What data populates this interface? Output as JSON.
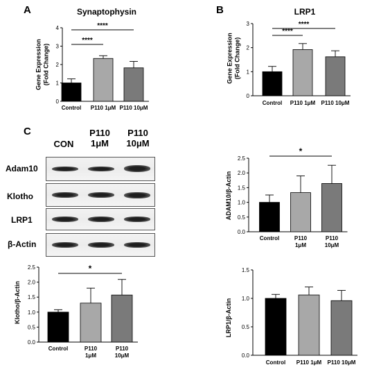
{
  "panels": {
    "a": "A",
    "b": "B",
    "c": "C"
  },
  "blot": {
    "lanes": [
      "CON",
      "P110 1μM",
      "P110 10μM"
    ],
    "rows": [
      {
        "label": "Adam10",
        "intensity": [
          0.75,
          0.8,
          1.0
        ]
      },
      {
        "label": "Klotho",
        "intensity": [
          0.85,
          0.9,
          0.95
        ]
      },
      {
        "label": "LRP1",
        "intensity": [
          0.95,
          0.95,
          0.95
        ]
      },
      {
        "label": "β-Actin",
        "intensity": [
          1.0,
          1.0,
          1.0
        ]
      }
    ]
  },
  "chart_data": [
    {
      "id": "synaptophysin",
      "type": "bar",
      "title": "Synaptophysin",
      "ylabel": [
        "Gene Expression",
        "(Fold Change)"
      ],
      "xlabel": "",
      "categories": [
        [
          "Control"
        ],
        [
          "P110 1μM"
        ],
        [
          "P110 10μM"
        ]
      ],
      "values": [
        1.0,
        2.33,
        1.82
      ],
      "errors": [
        0.22,
        0.15,
        0.35
      ],
      "colors": [
        "#000000",
        "#a8a8a8",
        "#7a7a7a"
      ],
      "ylim": [
        0,
        4
      ],
      "yticks": [
        0,
        1,
        2,
        3,
        4
      ],
      "tick_labels": [
        "0",
        "1",
        "2",
        "3",
        "4"
      ],
      "significance": [
        {
          "from": 0,
          "to": 1,
          "label": "****"
        },
        {
          "from": 0,
          "to": 2,
          "label": "****"
        }
      ]
    },
    {
      "id": "lrp1-gene",
      "type": "bar",
      "title": "LRP1",
      "ylabel": [
        "Gene Expression",
        "(Fold Change)"
      ],
      "xlabel": "",
      "categories": [
        [
          "Control"
        ],
        [
          "P110 1μM"
        ],
        [
          "P110 10μM"
        ]
      ],
      "values": [
        1.0,
        1.92,
        1.62
      ],
      "errors": [
        0.22,
        0.25,
        0.25
      ],
      "colors": [
        "#000000",
        "#a8a8a8",
        "#7a7a7a"
      ],
      "ylim": [
        0,
        3
      ],
      "yticks": [
        0,
        1,
        2,
        3
      ],
      "tick_labels": [
        "0",
        "1",
        "2",
        "3"
      ],
      "significance": [
        {
          "from": 0,
          "to": 1,
          "label": "****"
        },
        {
          "from": 0,
          "to": 2,
          "label": "****"
        }
      ]
    },
    {
      "id": "adam10",
      "type": "bar",
      "title": "",
      "ylabel": [
        "ADAM10/β-Actin"
      ],
      "xlabel": "",
      "categories": [
        [
          "Control"
        ],
        [
          "P110",
          "1μM"
        ],
        [
          "P110",
          "10μM"
        ]
      ],
      "values": [
        1.0,
        1.33,
        1.64
      ],
      "errors": [
        0.25,
        0.57,
        0.62
      ],
      "colors": [
        "#000000",
        "#a8a8a8",
        "#7a7a7a"
      ],
      "ylim": [
        0,
        2.5
      ],
      "yticks": [
        0,
        0.5,
        1,
        1.5,
        2,
        2.5
      ],
      "tick_labels": [
        "0.0",
        "0.5",
        "1.0",
        "1.5",
        "2.0",
        "2.5"
      ],
      "significance": [
        {
          "from": 0,
          "to": 2,
          "label": "*"
        }
      ]
    },
    {
      "id": "klotho",
      "type": "bar",
      "title": "",
      "ylabel": [
        "Klotho/β-Actin"
      ],
      "xlabel": "",
      "categories": [
        [
          "Control"
        ],
        [
          "P110",
          "1μM"
        ],
        [
          "P110",
          "10μM"
        ]
      ],
      "values": [
        1.0,
        1.3,
        1.57
      ],
      "errors": [
        0.08,
        0.5,
        0.52
      ],
      "colors": [
        "#000000",
        "#a8a8a8",
        "#7a7a7a"
      ],
      "ylim": [
        0,
        2.5
      ],
      "yticks": [
        0,
        0.5,
        1,
        1.5,
        2,
        2.5
      ],
      "tick_labels": [
        "0.0",
        "0.5",
        "1.0",
        "1.5",
        "2.0",
        "2.5"
      ],
      "significance": [
        {
          "from": 0,
          "to": 2,
          "label": "*"
        }
      ]
    },
    {
      "id": "lrp1-protein",
      "type": "bar",
      "title": "",
      "ylabel": [
        "LRP1/β-Actin"
      ],
      "xlabel": "",
      "categories": [
        [
          "Control"
        ],
        [
          "P110 1μM"
        ],
        [
          "P110 10μM"
        ]
      ],
      "values": [
        1.0,
        1.06,
        0.96
      ],
      "errors": [
        0.07,
        0.14,
        0.18
      ],
      "colors": [
        "#000000",
        "#a8a8a8",
        "#7a7a7a"
      ],
      "ylim": [
        0,
        1.5
      ],
      "yticks": [
        0,
        0.5,
        1,
        1.5
      ],
      "tick_labels": [
        "0.0",
        "0.5",
        "1.0",
        "1.5"
      ],
      "significance": []
    }
  ]
}
